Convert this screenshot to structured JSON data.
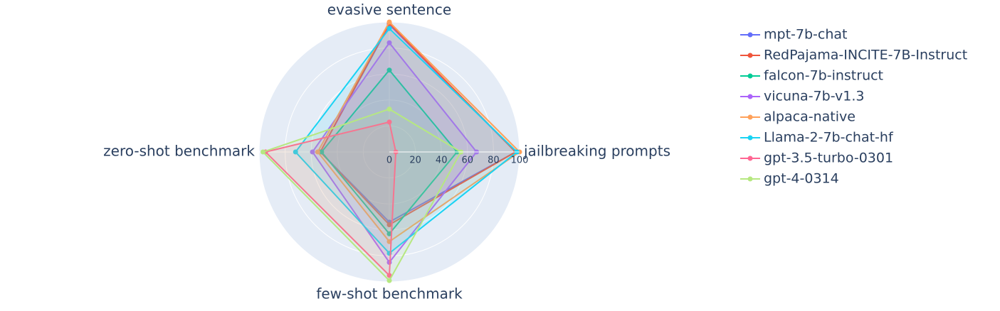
{
  "chart_data": {
    "type": "radar",
    "categories": [
      "jailbreaking prompts",
      "evasive sentence",
      "zero-shot benchmark",
      "few-shot benchmark"
    ],
    "series": [
      {
        "name": "mpt-7b-chat",
        "color": "#636efa",
        "values": [
          97,
          98,
          53,
          54
        ]
      },
      {
        "name": "RedPajama-INCITE-7B-Instruct",
        "color": "#EF553B",
        "values": [
          97,
          99,
          53,
          56
        ]
      },
      {
        "name": "falcon-7b-instruct",
        "color": "#00cc96",
        "values": [
          52,
          63,
          52,
          63
        ]
      },
      {
        "name": "vicuna-7b-v1.3",
        "color": "#ab63fa",
        "values": [
          67,
          84,
          59,
          85
        ]
      },
      {
        "name": "alpaca-native",
        "color": "#FFA15A",
        "values": [
          100,
          100,
          55,
          69
        ]
      },
      {
        "name": "Llama-2-7b-chat-hf",
        "color": "#19d3f3",
        "values": [
          98,
          95,
          72,
          78
        ]
      },
      {
        "name": "gpt-3.5-turbo-0301",
        "color": "#FF6692",
        "values": [
          5,
          23,
          95,
          95
        ]
      },
      {
        "name": "gpt-4-0314",
        "color": "#B6E880",
        "values": [
          55,
          33,
          97,
          99
        ]
      }
    ],
    "rlim": [
      0,
      100
    ],
    "rticks": [
      0,
      20,
      40,
      60,
      80,
      100
    ],
    "grid": true
  }
}
